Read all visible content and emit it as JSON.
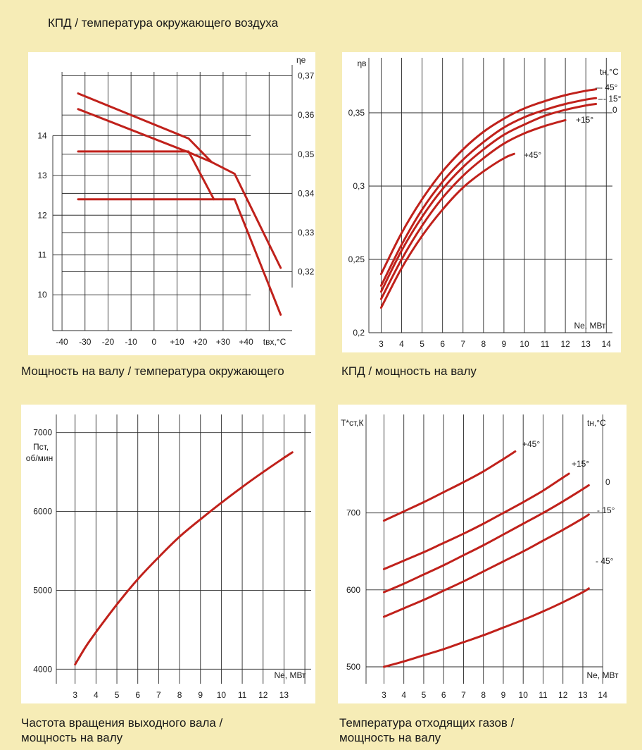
{
  "captions": {
    "top_left": "КПД / температура окружающего воздуха",
    "mid_left": "Мощность на валу / температура окружающего",
    "mid_right": "КПД / мощность на валу",
    "bottom_left": "Частота вращения выходного вала /\nмощность на валу",
    "bottom_right": "Температура отходящих газов /\nмощность на валу"
  },
  "colors": {
    "background": "#f6ecb6",
    "curve": "#c0211b"
  },
  "chart_data": [
    {
      "id": "eff_vs_temp",
      "type": "line",
      "xlabel": "tвх,°C",
      "ylabel_right": "ηе",
      "ylabel_left": "",
      "x_ticks": [
        "-40",
        "-30",
        "-20",
        "-10",
        "0",
        "+10",
        "+20",
        "+30",
        "+40"
      ],
      "y_right_ticks": [
        "0,37",
        "0,36",
        "0,35",
        "0,34",
        "0,33",
        "0,32"
      ],
      "y_left_ticks": [
        "14",
        "13",
        "12",
        "11",
        "10"
      ],
      "xlim": [
        -44,
        60
      ],
      "yright_lim": [
        0.305,
        0.371
      ],
      "yleft_lim": [
        9.1,
        15.6
      ],
      "series_efficiency": [
        {
          "x": [
            -33,
            15,
            25,
            35,
            55
          ],
          "y": [
            0.3655,
            0.354,
            0.348,
            0.345,
            0.321
          ]
        },
        {
          "x": [
            -33,
            15,
            25
          ],
          "y": [
            0.3615,
            0.3505,
            0.348
          ]
        }
      ],
      "series_power": [
        {
          "x": [
            -33,
            15,
            26
          ],
          "y": [
            13.6,
            13.6,
            12.4
          ]
        },
        {
          "x": [
            -33,
            35,
            55
          ],
          "y": [
            12.4,
            12.4,
            9.5
          ]
        }
      ]
    },
    {
      "id": "eff_vs_power",
      "type": "line",
      "ylabel": "ηв",
      "xlabel": "Ne, МВт",
      "legend_title": "tн,°C",
      "x_ticks": [
        "3",
        "4",
        "5",
        "6",
        "7",
        "8",
        "9",
        "10",
        "11",
        "12",
        "13",
        "14"
      ],
      "y_ticks": [
        "0,35",
        "0,3",
        "0,25",
        "0,2"
      ],
      "xlim": [
        2.4,
        14.3
      ],
      "ylim": [
        0.2,
        0.3875
      ],
      "series": [
        {
          "name": "- 45°",
          "x": [
            3,
            4,
            5,
            6,
            7,
            8,
            9,
            10,
            11,
            12,
            13,
            13.5
          ],
          "y": [
            0.24,
            0.268,
            0.291,
            0.31,
            0.325,
            0.337,
            0.346,
            0.353,
            0.358,
            0.362,
            0.365,
            0.366
          ]
        },
        {
          "name": "- 15°",
          "x": [
            3,
            4,
            5,
            6,
            7,
            8,
            9,
            10,
            11,
            12,
            13,
            13.5
          ],
          "y": [
            0.232,
            0.26,
            0.284,
            0.303,
            0.318,
            0.33,
            0.34,
            0.347,
            0.352,
            0.356,
            0.359,
            0.36
          ]
        },
        {
          "name": "0",
          "x": [
            3,
            4,
            5,
            6,
            7,
            8,
            9,
            10,
            11,
            12,
            13,
            13.5
          ],
          "y": [
            0.228,
            0.256,
            0.279,
            0.298,
            0.313,
            0.325,
            0.335,
            0.342,
            0.348,
            0.352,
            0.355,
            0.356
          ]
        },
        {
          "name": "+15°",
          "x": [
            3,
            4,
            5,
            6,
            7,
            8,
            9,
            10,
            11,
            12
          ],
          "y": [
            0.223,
            0.25,
            0.273,
            0.292,
            0.307,
            0.319,
            0.329,
            0.336,
            0.341,
            0.345
          ]
        },
        {
          "name": "+45°",
          "x": [
            3,
            4,
            5,
            6,
            7,
            8,
            9,
            9.5
          ],
          "y": [
            0.217,
            0.244,
            0.266,
            0.284,
            0.299,
            0.31,
            0.319,
            0.322
          ]
        }
      ]
    },
    {
      "id": "speed_vs_power",
      "type": "line",
      "ylabel": "Пст,\nоб/мин",
      "xlabel": "Ne, МВт",
      "x_ticks": [
        "3",
        "4",
        "5",
        "6",
        "7",
        "8",
        "9",
        "10",
        "11",
        "12",
        "13"
      ],
      "y_ticks": [
        "7000",
        "6000",
        "5000",
        "4000"
      ],
      "xlim": [
        2.1,
        14.3
      ],
      "ylim": [
        3815,
        7230
      ],
      "series": [
        {
          "x": [
            3,
            3.5,
            4,
            5,
            6,
            7,
            8,
            9,
            10,
            11,
            12,
            13,
            13.4
          ],
          "y": [
            4060,
            4280,
            4470,
            4820,
            5140,
            5420,
            5680,
            5900,
            6110,
            6310,
            6500,
            6680,
            6750
          ]
        }
      ]
    },
    {
      "id": "gas_temp_vs_power",
      "type": "line",
      "ylabel": "T*ст,К",
      "xlabel": "Ne, МВт",
      "legend_title": "tн,°C",
      "x_ticks": [
        "3",
        "4",
        "5",
        "6",
        "7",
        "8",
        "9",
        "10",
        "11",
        "12",
        "13",
        "14"
      ],
      "y_ticks": [
        "700",
        "600",
        "500"
      ],
      "xlim": [
        2.1,
        14.7
      ],
      "ylim": [
        478,
        828
      ],
      "series": [
        {
          "name": "+45°",
          "x": [
            3,
            4,
            5,
            6,
            7,
            8,
            9,
            9.6
          ],
          "y": [
            690,
            702,
            714,
            727,
            740,
            754,
            770,
            780
          ]
        },
        {
          "name": "+15°",
          "x": [
            3,
            4,
            5,
            6,
            7,
            8,
            9,
            10,
            11,
            12,
            12.3
          ],
          "y": [
            627,
            638,
            649,
            661,
            673,
            686,
            700,
            714,
            729,
            746,
            751
          ]
        },
        {
          "name": "0",
          "x": [
            3,
            4,
            5,
            6,
            7,
            8,
            9,
            10,
            11,
            12,
            13,
            13.3
          ],
          "y": [
            597,
            608,
            620,
            632,
            645,
            658,
            672,
            686,
            700,
            715,
            731,
            736
          ]
        },
        {
          "name": "- 15°",
          "x": [
            3,
            4,
            5,
            6,
            7,
            8,
            9,
            10,
            11,
            12,
            13,
            13.3
          ],
          "y": [
            565,
            576,
            587,
            599,
            611,
            624,
            637,
            650,
            664,
            678,
            693,
            698
          ]
        },
        {
          "name": "- 45°",
          "x": [
            3,
            4,
            5,
            6,
            7,
            8,
            9,
            10,
            11,
            12,
            13,
            13.3
          ],
          "y": [
            500,
            507,
            515,
            523,
            532,
            541,
            551,
            561,
            572,
            584,
            597,
            602
          ]
        }
      ]
    }
  ]
}
